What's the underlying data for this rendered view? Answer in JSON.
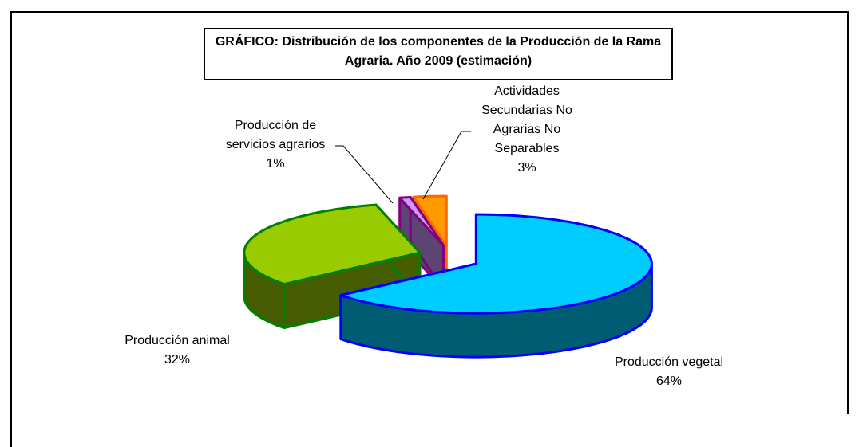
{
  "chart_data": {
    "type": "pie3d",
    "title": "GRÁFICO: Distribución de los componentes de la Producción de la Rama Agraria. Año 2009 (estimación)",
    "categories": [
      "Producción vegetal",
      "Producción animal",
      "Producción de servicios agrarios",
      "Actividades Secundarias No Agrarias No Separables"
    ],
    "values": [
      64,
      32,
      1,
      3
    ],
    "value_labels": [
      "64%",
      "32%",
      "1%",
      "3%"
    ],
    "colors": [
      "#00ccff",
      "#99cc00",
      "#cc99ff",
      "#ff9900"
    ],
    "edge_colors": [
      "#0000ff",
      "#008000",
      "#800080",
      "#ff6600"
    ]
  }
}
